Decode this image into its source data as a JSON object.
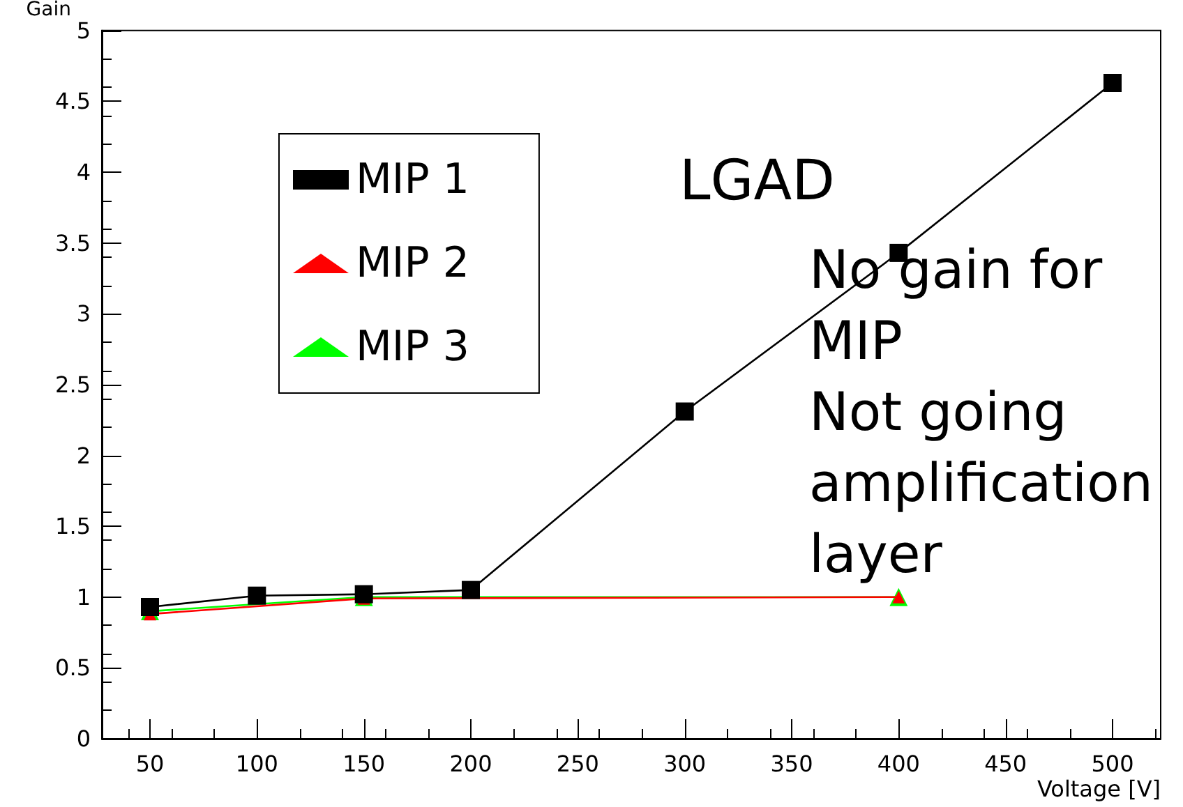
{
  "chart_data": {
    "type": "line",
    "xlabel": "Voltage [V]",
    "ylabel": "Gain",
    "series": [
      {
        "name": "MIP 1",
        "color": "#000000",
        "marker": "square",
        "x": [
          50,
          100,
          150,
          200,
          300,
          400,
          500
        ],
        "values": [
          0.93,
          1.01,
          1.02,
          1.05,
          2.31,
          3.43,
          4.63
        ]
      },
      {
        "name": "MIP 2",
        "color": "#ff0000",
        "marker": "triangle",
        "x": [
          50,
          150,
          400
        ],
        "values": [
          0.88,
          0.99,
          1.0
        ]
      },
      {
        "name": "MIP 3",
        "color": "#00ff00",
        "marker": "triangle",
        "x": [
          50,
          150,
          400
        ],
        "values": [
          0.9,
          1.0,
          1.0
        ]
      }
    ],
    "xlim": [
      27.5,
      522.5
    ],
    "xticks": [
      50,
      100,
      150,
      200,
      250,
      300,
      350,
      400,
      450,
      500
    ],
    "ylim": [
      0,
      5
    ],
    "yticks": [
      0,
      0.5,
      1,
      1.5,
      2,
      2.5,
      3,
      3.5,
      4,
      4.5,
      5
    ],
    "grid": false,
    "legend": "top left",
    "line_style": "solid",
    "annotations": [
      "LGAD",
      "No gain for MIP",
      "Not going amplification layer"
    ]
  }
}
